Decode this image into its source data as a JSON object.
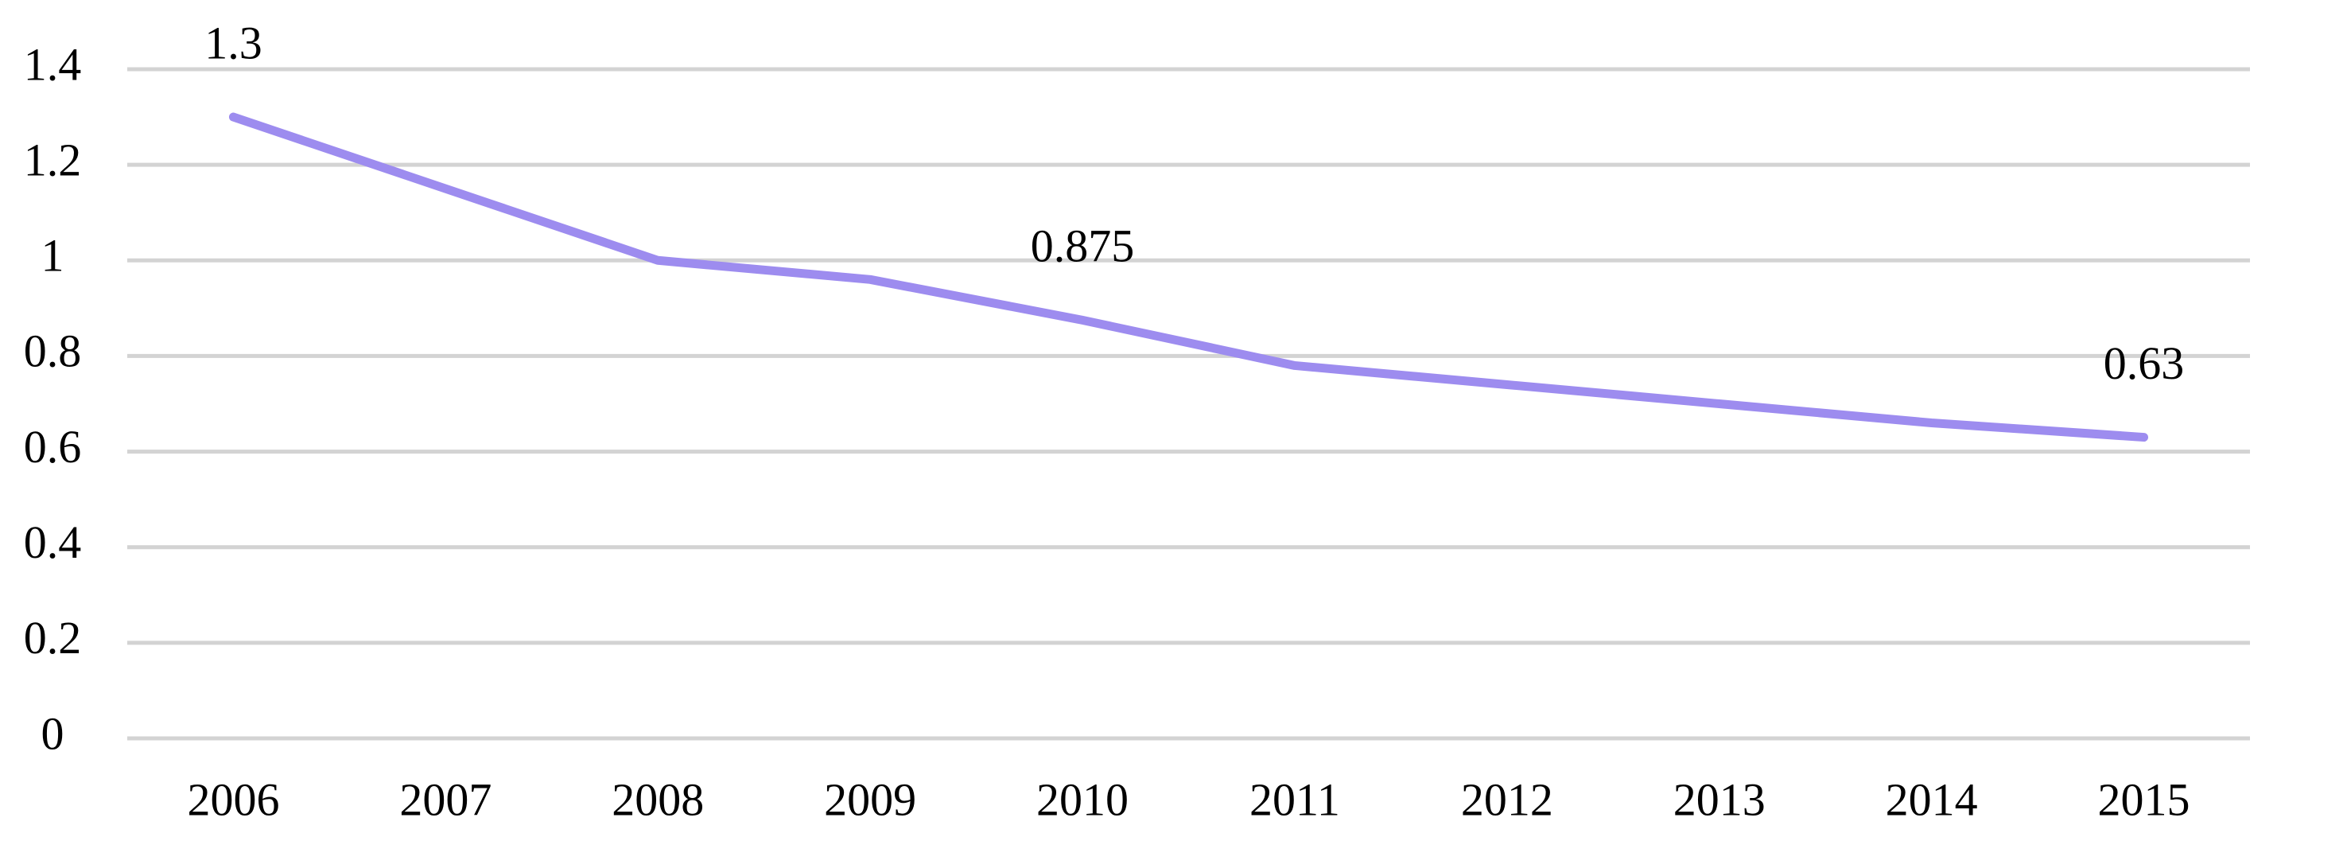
{
  "chart_data": {
    "type": "line",
    "categories": [
      "2006",
      "2007",
      "2008",
      "2009",
      "2010",
      "2011",
      "2012",
      "2013",
      "2014",
      "2015"
    ],
    "series": [
      {
        "color": "#9d8cef",
        "values": [
          1.3,
          1.15,
          1.0,
          0.96,
          0.875,
          0.78,
          0.74,
          0.7,
          0.66,
          0.63
        ],
        "value_labels": [
          "1.3",
          null,
          null,
          null,
          "0.875",
          null,
          null,
          null,
          null,
          "0.63"
        ]
      }
    ],
    "ylim": [
      0,
      1.4
    ],
    "yticks": [
      0,
      0.2,
      0.4,
      0.6,
      0.8,
      1,
      1.2,
      1.4
    ],
    "grid": true
  }
}
